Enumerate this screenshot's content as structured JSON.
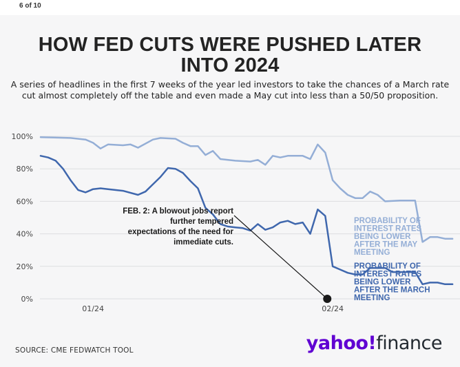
{
  "page_counter": "6 of 10",
  "title": "HOW FED CUTS WERE PUSHED LATER INTO 2024",
  "subtitle": "A series of headlines in the first 7 weeks of the year led investors to take the chances of a March rate cut almost completely off the table and even made a May cut into less than a 50/50 proposition.",
  "source": "SOURCE: CME FEDWATCH TOOL",
  "logo": {
    "yahoo": "yahoo!",
    "finance": "finance"
  },
  "colors": {
    "march": "#3f67ad",
    "may": "#94aed6",
    "grid": "#dcdde0",
    "marker": "#1a1a1a"
  },
  "chart_data": {
    "type": "line",
    "title": "HOW FED CUTS WERE PUSHED LATER INTO 2024",
    "xlabel": "",
    "ylabel": "",
    "x_range_days": [
      -6,
      50
    ],
    "ylim": [
      0,
      100
    ],
    "y_ticks": [
      {
        "value": 0,
        "label": "0%"
      },
      {
        "value": 20,
        "label": "20%"
      },
      {
        "value": 40,
        "label": "40%"
      },
      {
        "value": 60,
        "label": "60%"
      },
      {
        "value": 80,
        "label": "80%"
      },
      {
        "value": 100,
        "label": "100%"
      }
    ],
    "x_ticks": [
      {
        "day": 1,
        "label": "01/24"
      },
      {
        "day": 33,
        "label": "02/24"
      }
    ],
    "grid": "horizontal",
    "series": [
      {
        "name": "PROBABILITY OF INTEREST RATES BEING LOWER AFTER THE MAY MEETING",
        "label_lines": [
          "PROBABILITY OF",
          "INTEREST RATES",
          "BEING LOWER",
          "AFTER THE MAY",
          "MEETING"
        ],
        "points": [
          [
            -6,
            99.5
          ],
          [
            -2,
            99
          ],
          [
            0,
            98
          ],
          [
            1,
            96
          ],
          [
            2,
            92.5
          ],
          [
            3,
            95
          ],
          [
            5,
            94.5
          ],
          [
            6,
            95
          ],
          [
            7,
            93
          ],
          [
            9,
            98
          ],
          [
            10,
            99
          ],
          [
            12,
            98.5
          ],
          [
            13,
            96
          ],
          [
            14,
            94
          ],
          [
            15,
            94
          ],
          [
            16,
            88.5
          ],
          [
            17,
            91
          ],
          [
            18,
            86
          ],
          [
            20,
            85
          ],
          [
            22,
            84.5
          ],
          [
            23,
            85.5
          ],
          [
            24,
            82.5
          ],
          [
            25,
            88
          ],
          [
            26,
            87
          ],
          [
            27,
            88
          ],
          [
            29,
            88
          ],
          [
            30,
            86
          ],
          [
            31,
            95
          ],
          [
            32,
            90
          ],
          [
            33,
            73
          ],
          [
            34,
            68
          ],
          [
            35,
            64
          ],
          [
            36,
            62
          ],
          [
            37,
            62
          ],
          [
            38,
            66
          ],
          [
            39,
            64
          ],
          [
            40,
            60
          ],
          [
            42,
            60.5
          ],
          [
            43,
            60.5
          ],
          [
            44,
            60.5
          ],
          [
            45,
            35
          ],
          [
            46,
            38
          ],
          [
            47,
            38
          ],
          [
            48,
            37
          ],
          [
            49,
            37
          ]
        ]
      },
      {
        "name": "PROBABILITY OF INTEREST RATES BEING LOWER AFTER THE MARCH MEETING",
        "label_lines": [
          "PROBABILITY OF",
          "INTEREST RATES",
          "BEING LOWER",
          "AFTER THE MARCH",
          "MEETING"
        ],
        "points": [
          [
            -6,
            88
          ],
          [
            -5,
            87
          ],
          [
            -4,
            85
          ],
          [
            -3,
            80
          ],
          [
            -2,
            73
          ],
          [
            -1,
            67
          ],
          [
            0,
            65.5
          ],
          [
            1,
            67.5
          ],
          [
            2,
            68
          ],
          [
            3,
            67.5
          ],
          [
            5,
            66.5
          ],
          [
            7,
            64
          ],
          [
            8,
            66
          ],
          [
            9,
            70.5
          ],
          [
            10,
            75
          ],
          [
            11,
            80.5
          ],
          [
            12,
            80
          ],
          [
            13,
            77.5
          ],
          [
            14,
            72.5
          ],
          [
            15,
            68
          ],
          [
            16,
            56
          ],
          [
            17,
            52
          ],
          [
            18,
            46
          ],
          [
            19,
            44.5
          ],
          [
            20,
            44
          ],
          [
            21,
            43.5
          ],
          [
            22,
            42
          ],
          [
            23,
            46
          ],
          [
            24,
            42.5
          ],
          [
            25,
            44
          ],
          [
            26,
            47
          ],
          [
            27,
            48
          ],
          [
            28,
            46
          ],
          [
            29,
            47
          ],
          [
            30,
            40
          ],
          [
            31,
            55
          ],
          [
            32,
            51
          ],
          [
            33,
            20
          ],
          [
            34,
            18
          ],
          [
            35,
            16
          ],
          [
            36,
            15
          ],
          [
            37,
            15
          ],
          [
            38,
            19
          ],
          [
            39,
            19
          ],
          [
            40,
            19
          ],
          [
            41,
            16.5
          ],
          [
            42,
            16.5
          ],
          [
            44,
            16.5
          ],
          [
            45,
            9
          ],
          [
            46,
            10
          ],
          [
            47,
            10
          ],
          [
            48,
            9
          ],
          [
            49,
            9
          ]
        ]
      }
    ],
    "annotation": {
      "text_lines": [
        "FEB. 2: A blowout jobs report",
        "further tempered",
        "expectations of the need for",
        "immediate cuts."
      ],
      "day": 32,
      "value": 0
    }
  }
}
